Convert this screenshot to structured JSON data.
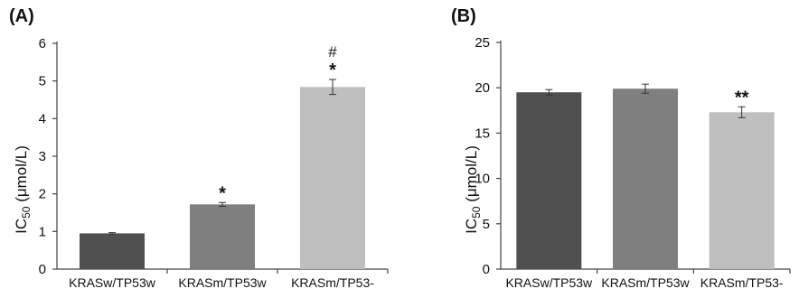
{
  "chart_data": [
    {
      "type": "bar",
      "panel_label": "(A)",
      "ylabel_main": "IC",
      "ylabel_sub": "50",
      "ylabel_unit": " (μmol/L)",
      "categories": [
        "KRASw/TP53w",
        "KRASm/TP53w",
        "KRASm/TP53-"
      ],
      "values": [
        0.95,
        1.72,
        4.84
      ],
      "errors": [
        0.02,
        0.05,
        0.2
      ],
      "annotations": [
        "",
        "*",
        "*"
      ],
      "annotations_top": [
        "",
        "",
        "#"
      ],
      "colors": [
        "#505050",
        "#7f7f7f",
        "#bfbfbf"
      ],
      "ylim": [
        0,
        6
      ],
      "yticks": [
        "0",
        "1",
        "2",
        "3",
        "4",
        "5",
        "6"
      ],
      "grid": false
    },
    {
      "type": "bar",
      "panel_label": "(B)",
      "ylabel_main": "IC",
      "ylabel_sub": "50",
      "ylabel_unit": " (μmol/L)",
      "categories": [
        "KRASw/TP53w",
        "KRASm/TP53w",
        "KRASm/TP53-"
      ],
      "values": [
        19.5,
        19.9,
        17.3
      ],
      "errors": [
        0.3,
        0.5,
        0.6
      ],
      "annotations": [
        "",
        "",
        "**"
      ],
      "annotations_top": [
        "",
        "",
        ""
      ],
      "colors": [
        "#505050",
        "#7f7f7f",
        "#bfbfbf"
      ],
      "ylim": [
        0,
        25
      ],
      "yticks": [
        "0",
        "5",
        "10",
        "15",
        "20",
        "25"
      ],
      "grid": false
    }
  ]
}
